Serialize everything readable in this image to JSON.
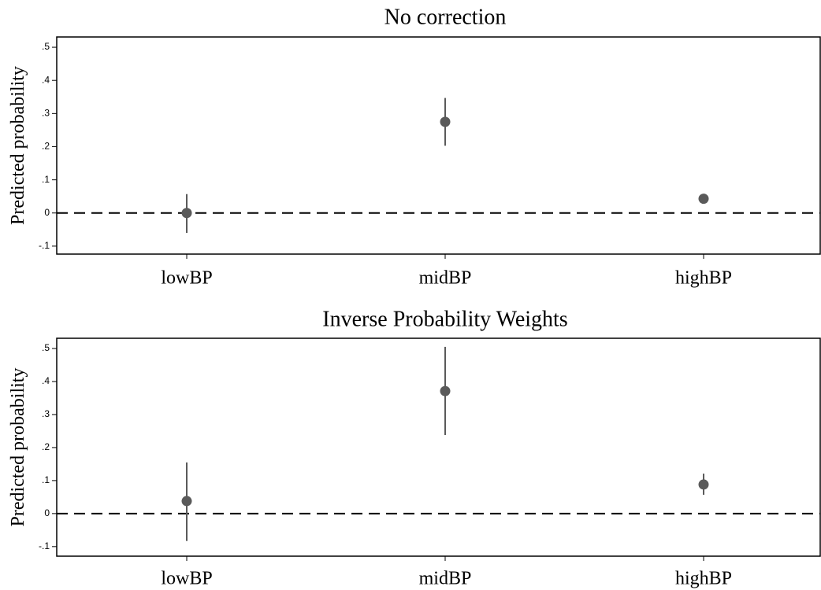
{
  "chart_data": [
    {
      "type": "errorbar",
      "title": "No correction",
      "y_label": "Predicted probability",
      "categories": [
        "lowBP",
        "midBP",
        "highBP"
      ],
      "values": [
        0.0,
        0.275,
        0.043
      ],
      "lower": [
        -0.06,
        0.203,
        0.04
      ],
      "upper": [
        0.057,
        0.347,
        0.046
      ],
      "color": "#5a5a5a",
      "reference_line": 0,
      "ylim": [
        -0.124,
        0.531
      ],
      "yticks": [
        {
          "value": -0.1,
          "label": "-.1"
        },
        0,
        {
          "value": 0.1,
          "label": ".1"
        },
        {
          "value": 0.2,
          "label": ".2"
        },
        {
          "value": 0.3,
          "label": ".3"
        },
        {
          "value": 0.4,
          "label": ".4"
        },
        {
          "value": 0.5,
          "label": ".5"
        }
      ]
    },
    {
      "type": "errorbar",
      "title": "Inverse Probability Weights",
      "y_label": "Predicted probability",
      "categories": [
        "lowBP",
        "midBP",
        "highBP"
      ],
      "values": [
        0.038,
        0.371,
        0.088
      ],
      "lower": [
        -0.083,
        0.238,
        0.057
      ],
      "upper": [
        0.155,
        0.505,
        0.121
      ],
      "color": "#5a5a5a",
      "reference_line": 0,
      "ylim": [
        -0.129,
        0.531
      ],
      "yticks": [
        {
          "value": -0.1,
          "label": "-.1"
        },
        0,
        {
          "value": 0.1,
          "label": ".1"
        },
        {
          "value": 0.2,
          "label": ".2"
        },
        {
          "value": 0.3,
          "label": ".3"
        },
        {
          "value": 0.4,
          "label": ".4"
        },
        {
          "value": 0.5,
          "label": ".5"
        }
      ]
    }
  ]
}
